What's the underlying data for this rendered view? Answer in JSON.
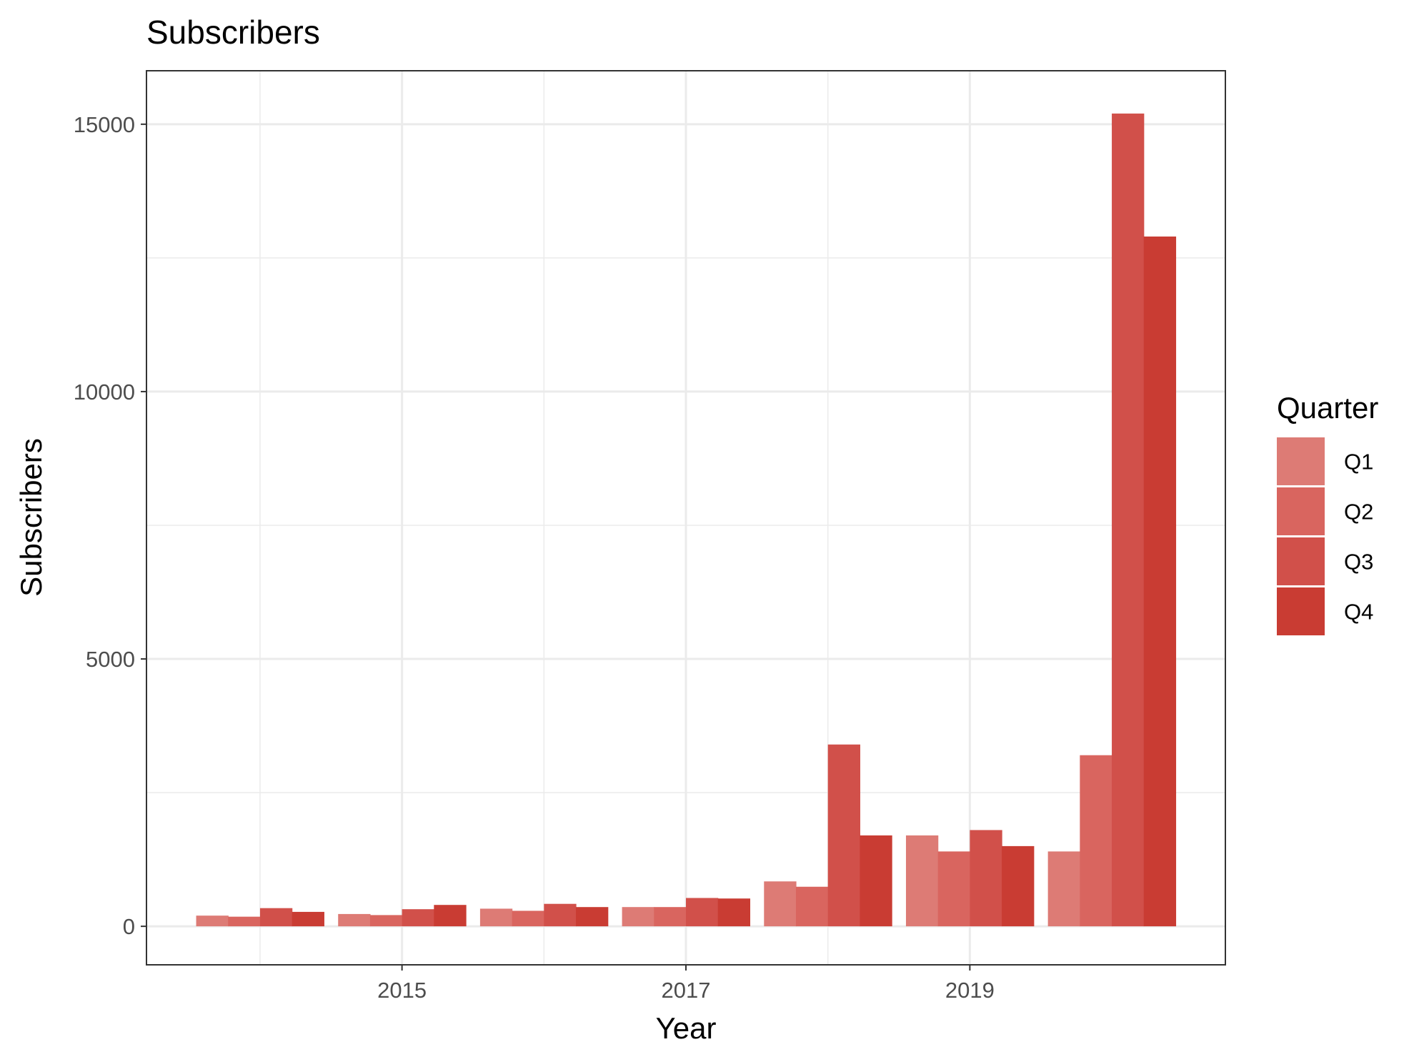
{
  "chart_data": {
    "type": "bar",
    "title": "Subscribers",
    "xlabel": "Year",
    "ylabel": "Subscribers",
    "x_ticks": [
      2015,
      2017,
      2019
    ],
    "y_ticks": [
      0,
      5000,
      10000,
      15000
    ],
    "xlim": [
      2013.2,
      2020.8
    ],
    "ylim": [
      -720,
      16000
    ],
    "categories": [
      2014,
      2015,
      2016,
      2017,
      2018,
      2019,
      2020
    ],
    "legend": {
      "title": "Quarter",
      "position": "right"
    },
    "grid": true,
    "series": [
      {
        "name": "Q1",
        "color": "#dd7b75",
        "values": [
          200,
          230,
          330,
          360,
          840,
          1700,
          1400
        ]
      },
      {
        "name": "Q2",
        "color": "#d9655f",
        "values": [
          180,
          210,
          290,
          360,
          740,
          1400,
          3200
        ]
      },
      {
        "name": "Q3",
        "color": "#d1504a",
        "values": [
          340,
          320,
          420,
          530,
          3400,
          1800,
          15200
        ]
      },
      {
        "name": "Q4",
        "color": "#c93c33",
        "values": [
          270,
          400,
          360,
          520,
          1700,
          1500,
          12900
        ]
      }
    ]
  }
}
